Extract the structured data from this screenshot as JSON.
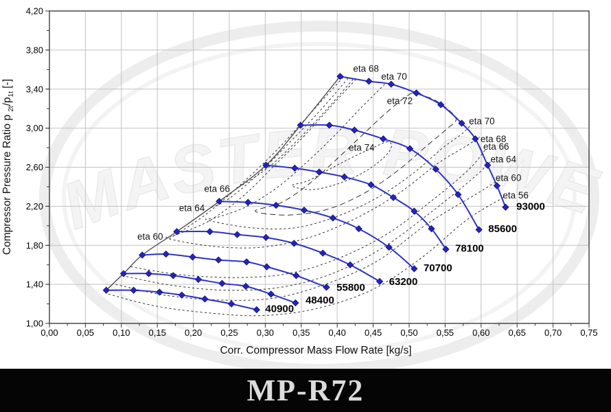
{
  "watermark": {
    "text": "MASTER POWER"
  },
  "footer": {
    "title": "MP-R72"
  },
  "chart_data": {
    "type": "line",
    "title": "",
    "xlabel": "Corr. Compressor Mass Flow Rate  [kg/s]",
    "ylabel_parts": [
      "Compressor Pressure Ratio p ",
      "2t",
      "/p",
      "1t",
      "  [-]"
    ],
    "xlim": [
      0,
      0.75
    ],
    "ylim": [
      1.0,
      4.2
    ],
    "grid": {
      "x_step": 0.05,
      "y_step": 0.4
    },
    "x_ticks": {
      "values": [
        0,
        0.05,
        0.1,
        0.15,
        0.2,
        0.25,
        0.3,
        0.35,
        0.4,
        0.45,
        0.5,
        0.55,
        0.6,
        0.65,
        0.7,
        0.75
      ],
      "labels": [
        "0,00",
        "0,05",
        "0,10",
        "0,15",
        "0,20",
        "0,25",
        "0,30",
        "0,35",
        "0,40",
        "0,45",
        "0,50",
        "0,55",
        "0,60",
        "0,65",
        "0,70",
        "0,75"
      ],
      "minor_step": 0.025
    },
    "y_ticks": {
      "values": [
        1.0,
        1.4,
        1.8,
        2.2,
        2.6,
        3.0,
        3.4,
        3.8,
        4.2
      ],
      "labels": [
        "1,00",
        "1,40",
        "1,80",
        "2,20",
        "2,60",
        "3,00",
        "3,40",
        "3,80",
        "4,20"
      ],
      "minor_step": 0.2
    },
    "colors": {
      "speed_line": "#2e32c8",
      "marker_fill": "#2323c3",
      "marker_stroke": "#14146e",
      "contour": "#2f2f2f",
      "surge": "#444444",
      "grid": "#c2c2c2",
      "border": "#3c3c3c"
    },
    "speed_lines": [
      {
        "label": "40900",
        "label_at": [
          0.3,
          1.15
        ],
        "points": [
          [
            0.079,
            1.34
          ],
          [
            0.117,
            1.34
          ],
          [
            0.153,
            1.32
          ],
          [
            0.184,
            1.29
          ],
          [
            0.216,
            1.25
          ],
          [
            0.253,
            1.2
          ],
          [
            0.288,
            1.14
          ]
        ]
      },
      {
        "label": "48400",
        "label_at": [
          0.356,
          1.24
        ],
        "points": [
          [
            0.103,
            1.51
          ],
          [
            0.138,
            1.51
          ],
          [
            0.172,
            1.49
          ],
          [
            0.207,
            1.45
          ],
          [
            0.24,
            1.41
          ],
          [
            0.273,
            1.38
          ],
          [
            0.308,
            1.3
          ],
          [
            0.342,
            1.21
          ]
        ]
      },
      {
        "label": "55800",
        "label_at": [
          0.399,
          1.37
        ],
        "points": [
          [
            0.129,
            1.7
          ],
          [
            0.162,
            1.71
          ],
          [
            0.199,
            1.68
          ],
          [
            0.235,
            1.65
          ],
          [
            0.274,
            1.63
          ],
          [
            0.302,
            1.58
          ],
          [
            0.343,
            1.49
          ],
          [
            0.385,
            1.37
          ]
        ]
      },
      {
        "label": "63200",
        "label_at": [
          0.472,
          1.43
        ],
        "points": [
          [
            0.177,
            1.94
          ],
          [
            0.223,
            1.94
          ],
          [
            0.261,
            1.91
          ],
          [
            0.301,
            1.88
          ],
          [
            0.34,
            1.82
          ],
          [
            0.38,
            1.72
          ],
          [
            0.418,
            1.6
          ],
          [
            0.459,
            1.43
          ]
        ]
      },
      {
        "label": "70700",
        "label_at": [
          0.52,
          1.57
        ],
        "points": [
          [
            0.236,
            2.25
          ],
          [
            0.276,
            2.24
          ],
          [
            0.315,
            2.21
          ],
          [
            0.354,
            2.16
          ],
          [
            0.394,
            2.08
          ],
          [
            0.43,
            1.97
          ],
          [
            0.472,
            1.78
          ],
          [
            0.507,
            1.56
          ]
        ]
      },
      {
        "label": "78100",
        "label_at": [
          0.564,
          1.77
        ],
        "points": [
          [
            0.301,
            2.62
          ],
          [
            0.341,
            2.59
          ],
          [
            0.375,
            2.55
          ],
          [
            0.41,
            2.5
          ],
          [
            0.447,
            2.42
          ],
          [
            0.478,
            2.29
          ],
          [
            0.507,
            2.15
          ],
          [
            0.531,
            1.97
          ],
          [
            0.551,
            1.76
          ]
        ]
      },
      {
        "label": "85600",
        "label_at": [
          0.61,
          1.97
        ],
        "points": [
          [
            0.349,
            3.03
          ],
          [
            0.389,
            3.03
          ],
          [
            0.424,
            2.98
          ],
          [
            0.464,
            2.89
          ],
          [
            0.501,
            2.79
          ],
          [
            0.537,
            2.58
          ],
          [
            0.568,
            2.32
          ],
          [
            0.597,
            1.96
          ]
        ]
      },
      {
        "label": "93000",
        "label_at": [
          0.649,
          2.2
        ],
        "points": [
          [
            0.404,
            3.53
          ],
          [
            0.444,
            3.48
          ],
          [
            0.475,
            3.45
          ],
          [
            0.51,
            3.36
          ],
          [
            0.544,
            3.24
          ],
          [
            0.573,
            3.05
          ],
          [
            0.592,
            2.89
          ],
          [
            0.609,
            2.62
          ],
          [
            0.622,
            2.41
          ],
          [
            0.634,
            2.19
          ]
        ]
      }
    ],
    "surge_line": [
      [
        0.079,
        1.34
      ],
      [
        0.103,
        1.51
      ],
      [
        0.129,
        1.7
      ],
      [
        0.177,
        1.94
      ],
      [
        0.236,
        2.25
      ],
      [
        0.301,
        2.62
      ],
      [
        0.349,
        3.03
      ],
      [
        0.404,
        3.53
      ]
    ],
    "efficiency_contours": [
      {
        "label": "eta 56",
        "closed": false,
        "dash": "3 3.5",
        "segments": [
          [
            [
              0.082,
              1.3
            ],
            [
              0.146,
              1.18
            ],
            [
              0.218,
              1.11
            ],
            [
              0.294,
              1.08
            ],
            [
              0.37,
              1.15
            ],
            [
              0.447,
              1.34
            ],
            [
              0.515,
              1.66
            ],
            [
              0.58,
              2.06
            ],
            [
              0.631,
              2.29
            ]
          ]
        ]
      },
      {
        "label": "eta 60",
        "closed": false,
        "dash": "3 3.5",
        "segments": [
          [
            [
              0.408,
              3.52
            ],
            [
              0.365,
              3.17
            ],
            [
              0.318,
              2.79
            ],
            [
              0.267,
              2.43
            ],
            [
              0.218,
              2.12
            ],
            [
              0.167,
              1.87
            ]
          ],
          [
            [
              0.092,
              1.4
            ],
            [
              0.16,
              1.29
            ],
            [
              0.237,
              1.24
            ],
            [
              0.313,
              1.26
            ],
            [
              0.387,
              1.41
            ],
            [
              0.458,
              1.65
            ],
            [
              0.525,
              2.02
            ],
            [
              0.59,
              2.31
            ],
            [
              0.627,
              2.48
            ]
          ]
        ]
      },
      {
        "label": "eta 64",
        "closed": false,
        "dash": "3 3.5",
        "segments": [
          [
            [
              0.415,
              3.51
            ],
            [
              0.375,
              3.17
            ],
            [
              0.332,
              2.84
            ],
            [
              0.286,
              2.5
            ],
            [
              0.246,
              2.26
            ],
            [
              0.222,
              2.18
            ]
          ],
          [
            [
              0.101,
              1.49
            ],
            [
              0.17,
              1.39
            ],
            [
              0.246,
              1.34
            ],
            [
              0.321,
              1.37
            ],
            [
              0.393,
              1.51
            ],
            [
              0.462,
              1.77
            ],
            [
              0.527,
              2.12
            ],
            [
              0.586,
              2.47
            ],
            [
              0.615,
              2.67
            ]
          ]
        ]
      },
      {
        "label": "eta 66",
        "closed": false,
        "dash": "3 3.5",
        "segments": [
          [
            [
              0.422,
              3.5
            ],
            [
              0.385,
              3.19
            ],
            [
              0.344,
              2.87
            ],
            [
              0.303,
              2.59
            ],
            [
              0.258,
              2.37
            ]
          ],
          [
            [
              0.113,
              1.58
            ],
            [
              0.181,
              1.5
            ],
            [
              0.258,
              1.47
            ],
            [
              0.332,
              1.51
            ],
            [
              0.403,
              1.67
            ],
            [
              0.47,
              1.92
            ],
            [
              0.532,
              2.26
            ],
            [
              0.582,
              2.57
            ],
            [
              0.607,
              2.79
            ]
          ]
        ]
      },
      {
        "label": "eta 68",
        "closed": false,
        "dash": "3 3.5",
        "segments": [
          [
            [
              0.426,
              3.5
            ],
            [
              0.391,
              3.22
            ],
            [
              0.354,
              2.92
            ],
            [
              0.313,
              2.62
            ],
            [
              0.27,
              2.31
            ],
            [
              0.222,
              2.05
            ],
            [
              0.177,
              1.91
            ],
            [
              0.165,
              1.87
            ],
            [
              0.227,
              1.79
            ],
            [
              0.294,
              1.78
            ],
            [
              0.361,
              1.88
            ],
            [
              0.427,
              2.08
            ],
            [
              0.487,
              2.34
            ],
            [
              0.54,
              2.64
            ],
            [
              0.58,
              2.82
            ],
            [
              0.598,
              2.91
            ]
          ]
        ]
      },
      {
        "label": "eta 70",
        "closed": false,
        "dash": "3 3.5",
        "segments": [
          [
            [
              0.466,
              3.45
            ],
            [
              0.432,
              3.2
            ],
            [
              0.397,
              2.93
            ],
            [
              0.359,
              2.66
            ],
            [
              0.318,
              2.4
            ],
            [
              0.275,
              2.2
            ],
            [
              0.235,
              2.09
            ],
            [
              0.219,
              2.06
            ],
            [
              0.28,
              1.98
            ],
            [
              0.342,
              1.98
            ],
            [
              0.401,
              2.1
            ],
            [
              0.456,
              2.29
            ],
            [
              0.506,
              2.54
            ],
            [
              0.547,
              2.8
            ],
            [
              0.573,
              2.94
            ],
            [
              0.588,
              3.05
            ]
          ]
        ]
      },
      {
        "label": "eta 72",
        "closed": true,
        "dash": "8 5",
        "segments": [
          [
            [
              0.504,
              3.36
            ],
            [
              0.47,
              3.17
            ],
            [
              0.435,
              2.93
            ],
            [
              0.399,
              2.68
            ],
            [
              0.361,
              2.43
            ],
            [
              0.323,
              2.24
            ],
            [
              0.286,
              2.15
            ],
            [
              0.332,
              2.11
            ],
            [
              0.387,
              2.17
            ],
            [
              0.439,
              2.34
            ],
            [
              0.485,
              2.57
            ],
            [
              0.523,
              2.81
            ],
            [
              0.552,
              2.99
            ],
            [
              0.565,
              3.1
            ],
            [
              0.542,
              3.26
            ],
            [
              0.521,
              3.33
            ]
          ]
        ]
      },
      {
        "label": "eta 74",
        "closed": true,
        "dash": "3 3",
        "segments": [
          [
            [
              0.47,
              2.86
            ],
            [
              0.447,
              2.79
            ],
            [
              0.418,
              2.69
            ],
            [
              0.387,
              2.57
            ],
            [
              0.359,
              2.46
            ],
            [
              0.337,
              2.41
            ],
            [
              0.365,
              2.37
            ],
            [
              0.401,
              2.43
            ],
            [
              0.435,
              2.54
            ],
            [
              0.462,
              2.68
            ],
            [
              0.475,
              2.8
            ]
          ]
        ]
      }
    ],
    "eta_labels": [
      {
        "text": "eta 60",
        "at": [
          0.14,
          1.89
        ]
      },
      {
        "text": "eta 64",
        "at": [
          0.198,
          2.18
        ]
      },
      {
        "text": "eta 66",
        "at": [
          0.233,
          2.38
        ]
      },
      {
        "text": "eta 68",
        "at": [
          0.44,
          3.61
        ]
      },
      {
        "text": "eta 70",
        "at": [
          0.479,
          3.53
        ]
      },
      {
        "text": "eta 72",
        "at": [
          0.487,
          3.28
        ]
      },
      {
        "text": "eta 74",
        "at": [
          0.434,
          2.8
        ]
      },
      {
        "text": "eta 70",
        "at": [
          0.601,
          3.07
        ]
      },
      {
        "text": "eta 68",
        "at": [
          0.617,
          2.89
        ]
      },
      {
        "text": "eta 66",
        "at": [
          0.621,
          2.81
        ]
      },
      {
        "text": "eta 64",
        "at": [
          0.631,
          2.68
        ]
      },
      {
        "text": "eta 60",
        "at": [
          0.638,
          2.49
        ]
      },
      {
        "text": "eta 56",
        "at": [
          0.648,
          2.31
        ]
      }
    ]
  }
}
